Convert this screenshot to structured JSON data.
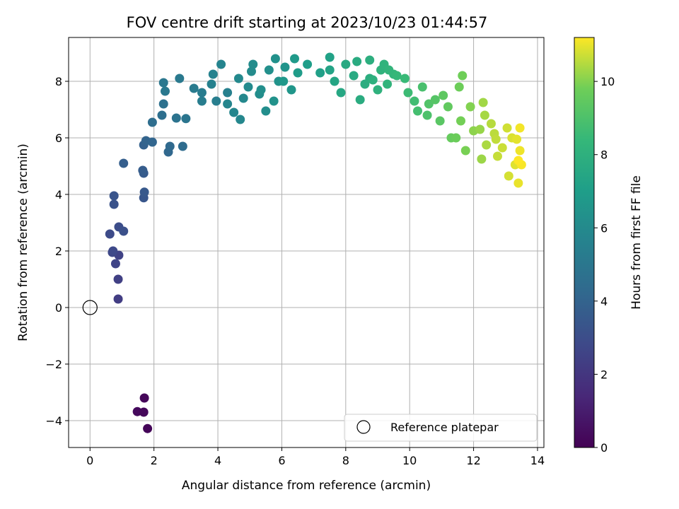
{
  "chart_data": {
    "type": "scatter",
    "title": "FOV centre drift starting at 2023/10/23 01:44:57",
    "xlabel": "Angular distance from reference (arcmin)",
    "ylabel": "Rotation from reference (arcmin)",
    "xlim": [
      -0.67,
      14.2
    ],
    "ylim": [
      -4.95,
      9.55
    ],
    "xticks": [
      "0",
      "2",
      "4",
      "6",
      "8",
      "10",
      "12",
      "14"
    ],
    "yticks": [
      "−4",
      "−2",
      "0",
      "2",
      "4",
      "6",
      "8"
    ],
    "grid": true,
    "legend": {
      "placement": "lower-right",
      "entries": [
        "Reference platepar"
      ]
    },
    "reference_point": {
      "x": 0,
      "y": 0
    },
    "colorbar": {
      "label": "Hours from first FF file",
      "range": [
        0,
        11.2
      ],
      "ticks": [
        "0",
        "2",
        "4",
        "6",
        "8",
        "10"
      ],
      "colormap": "viridis"
    },
    "series": [
      {
        "points": [
          [
            1.7,
            -3.2,
            0.2
          ],
          [
            1.48,
            -3.68,
            0.3
          ],
          [
            1.68,
            -3.7,
            0.25
          ],
          [
            1.8,
            -4.28,
            0.15
          ],
          [
            0.88,
            0.3,
            2.3
          ],
          [
            0.88,
            1.0,
            2.4
          ],
          [
            0.9,
            1.85,
            2.5
          ],
          [
            0.8,
            1.55,
            2.6
          ],
          [
            0.7,
            1.95,
            2.7
          ],
          [
            0.72,
            2.0,
            2.8
          ],
          [
            0.62,
            2.6,
            2.9
          ],
          [
            0.9,
            2.85,
            3.0
          ],
          [
            1.05,
            2.7,
            3.1
          ],
          [
            0.75,
            3.65,
            3.2
          ],
          [
            0.75,
            3.95,
            3.3
          ],
          [
            1.68,
            3.88,
            3.4
          ],
          [
            1.7,
            4.08,
            3.5
          ],
          [
            1.68,
            4.75,
            3.6
          ],
          [
            1.65,
            4.85,
            3.7
          ],
          [
            1.05,
            5.1,
            3.8
          ],
          [
            1.68,
            5.75,
            3.9
          ],
          [
            1.75,
            5.9,
            4.0
          ],
          [
            1.95,
            5.85,
            4.1
          ],
          [
            2.45,
            5.5,
            4.2
          ],
          [
            2.5,
            5.7,
            4.3
          ],
          [
            2.9,
            5.7,
            4.4
          ],
          [
            1.95,
            6.55,
            4.5
          ],
          [
            2.25,
            6.8,
            4.6
          ],
          [
            2.3,
            7.2,
            4.7
          ],
          [
            2.7,
            6.7,
            4.8
          ],
          [
            3.0,
            6.68,
            4.9
          ],
          [
            2.3,
            7.95,
            5.0
          ],
          [
            2.35,
            7.65,
            5.05
          ],
          [
            2.8,
            8.1,
            5.1
          ],
          [
            3.25,
            7.75,
            5.2
          ],
          [
            3.5,
            7.6,
            5.3
          ],
          [
            3.5,
            7.3,
            5.35
          ],
          [
            3.95,
            7.3,
            5.4
          ],
          [
            4.3,
            7.6,
            5.5
          ],
          [
            3.8,
            7.9,
            5.55
          ],
          [
            3.85,
            8.25,
            5.6
          ],
          [
            4.1,
            8.6,
            5.7
          ],
          [
            4.3,
            7.2,
            5.75
          ],
          [
            4.5,
            6.9,
            5.8
          ],
          [
            4.7,
            6.65,
            5.85
          ],
          [
            4.8,
            7.4,
            5.9
          ],
          [
            4.65,
            8.1,
            5.95
          ],
          [
            4.95,
            7.8,
            6.0
          ],
          [
            5.05,
            8.35,
            6.05
          ],
          [
            5.1,
            8.6,
            6.1
          ],
          [
            5.3,
            7.55,
            6.15
          ],
          [
            5.5,
            6.95,
            6.2
          ],
          [
            5.35,
            7.7,
            6.25
          ],
          [
            5.6,
            8.4,
            6.3
          ],
          [
            5.8,
            8.8,
            6.35
          ],
          [
            5.75,
            7.3,
            6.4
          ],
          [
            5.9,
            8.0,
            6.45
          ],
          [
            6.1,
            8.5,
            6.5
          ],
          [
            6.3,
            7.7,
            6.6
          ],
          [
            6.05,
            8.0,
            6.7
          ],
          [
            6.4,
            8.8,
            6.8
          ],
          [
            6.5,
            8.3,
            6.9
          ],
          [
            6.8,
            8.6,
            7.0
          ],
          [
            7.2,
            8.3,
            7.1
          ],
          [
            7.5,
            8.85,
            7.2
          ],
          [
            7.5,
            8.4,
            7.3
          ],
          [
            7.65,
            8.0,
            7.4
          ],
          [
            7.85,
            7.6,
            7.5
          ],
          [
            8.0,
            8.6,
            7.6
          ],
          [
            8.25,
            8.2,
            7.65
          ],
          [
            8.35,
            8.7,
            7.7
          ],
          [
            8.45,
            7.35,
            7.75
          ],
          [
            8.6,
            7.9,
            7.8
          ],
          [
            8.75,
            8.1,
            7.85
          ],
          [
            8.75,
            8.75,
            7.9
          ],
          [
            8.85,
            8.05,
            8.0
          ],
          [
            9.0,
            7.7,
            8.05
          ],
          [
            9.1,
            8.4,
            8.1
          ],
          [
            9.2,
            8.6,
            8.15
          ],
          [
            9.3,
            7.9,
            8.2
          ],
          [
            9.35,
            8.4,
            8.25
          ],
          [
            9.5,
            8.25,
            8.3
          ],
          [
            9.6,
            8.2,
            8.4
          ],
          [
            9.85,
            8.1,
            8.5
          ],
          [
            9.95,
            7.6,
            8.6
          ],
          [
            10.15,
            7.3,
            8.7
          ],
          [
            10.25,
            6.95,
            8.8
          ],
          [
            10.4,
            7.8,
            8.9
          ],
          [
            10.55,
            6.8,
            9.0
          ],
          [
            10.6,
            7.2,
            9.1
          ],
          [
            10.8,
            7.35,
            9.2
          ],
          [
            10.95,
            6.6,
            9.3
          ],
          [
            11.05,
            7.5,
            9.4
          ],
          [
            11.2,
            7.1,
            9.5
          ],
          [
            11.3,
            6.0,
            9.6
          ],
          [
            11.45,
            6.0,
            9.7
          ],
          [
            11.55,
            7.8,
            9.75
          ],
          [
            11.65,
            8.2,
            9.8
          ],
          [
            11.6,
            6.6,
            9.85
          ],
          [
            11.75,
            5.55,
            9.9
          ],
          [
            11.9,
            7.1,
            10.0
          ],
          [
            12.0,
            6.25,
            10.1
          ],
          [
            12.2,
            6.3,
            10.2
          ],
          [
            12.25,
            5.25,
            10.25
          ],
          [
            12.3,
            7.25,
            10.3
          ],
          [
            12.35,
            6.8,
            10.35
          ],
          [
            12.4,
            5.75,
            10.4
          ],
          [
            12.55,
            6.5,
            10.5
          ],
          [
            12.65,
            6.15,
            10.55
          ],
          [
            12.7,
            5.95,
            10.6
          ],
          [
            12.75,
            5.35,
            10.65
          ],
          [
            12.9,
            5.65,
            10.7
          ],
          [
            13.05,
            6.35,
            10.75
          ],
          [
            13.1,
            4.65,
            10.8
          ],
          [
            13.2,
            6.0,
            10.85
          ],
          [
            13.3,
            5.05,
            10.9
          ],
          [
            13.35,
            5.95,
            10.95
          ],
          [
            13.4,
            4.4,
            11.0
          ],
          [
            13.45,
            5.55,
            11.05
          ],
          [
            13.45,
            6.35,
            11.1
          ],
          [
            13.5,
            5.05,
            11.15
          ],
          [
            13.4,
            5.2,
            11.2
          ]
        ]
      }
    ]
  }
}
